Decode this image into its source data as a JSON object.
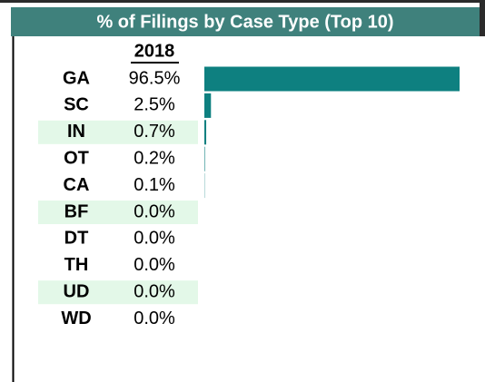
{
  "chart_data": {
    "type": "bar",
    "orientation": "horizontal",
    "title": "% of Filings by Case Type (Top 10)",
    "column_header": "2018",
    "categories": [
      "GA",
      "SC",
      "IN",
      "OT",
      "CA",
      "BF",
      "DT",
      "TH",
      "UD",
      "WD"
    ],
    "values": [
      96.5,
      2.5,
      0.7,
      0.2,
      0.1,
      0.0,
      0.0,
      0.0,
      0.0,
      0.0
    ],
    "value_labels": [
      "96.5%",
      "2.5%",
      "0.7%",
      "0.2%",
      "0.1%",
      "0.0%",
      "0.0%",
      "0.0%",
      "0.0%",
      "0.0%"
    ],
    "color": "#0e8080"
  }
}
